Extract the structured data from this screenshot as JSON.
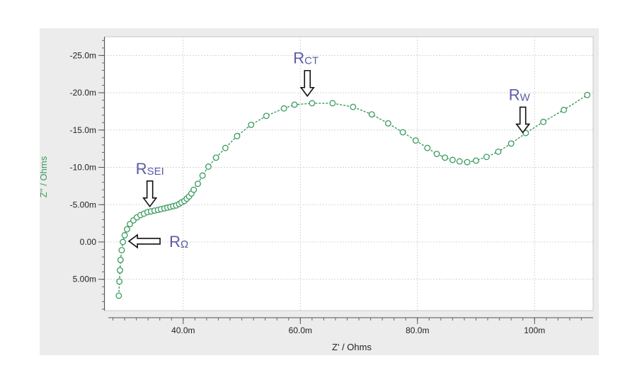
{
  "chart_data": {
    "type": "scatter",
    "title": "",
    "xlabel": "Z' / Ohms",
    "ylabel": "Z'' / Ohms",
    "xlim": [
      0.0266,
      0.11
    ],
    "ylim": [
      9.2,
      -27.5
    ],
    "y_inverted": true,
    "grid": true,
    "x_ticks": [
      {
        "value": 0.04,
        "label": "40.0m"
      },
      {
        "value": 0.06,
        "label": "60.0m"
      },
      {
        "value": 0.08,
        "label": "80.0m"
      },
      {
        "value": 0.1,
        "label": "100m"
      }
    ],
    "y_ticks": [
      {
        "value": -25,
        "label": "-25.0m"
      },
      {
        "value": -20,
        "label": "-20.0m"
      },
      {
        "value": -15,
        "label": "-15.0m"
      },
      {
        "value": -10,
        "label": "-10.0m"
      },
      {
        "value": -5,
        "label": "-5.00m"
      },
      {
        "value": 0,
        "label": "0.00"
      },
      {
        "value": 5,
        "label": "5.00m"
      }
    ],
    "series_color": "#3a9a5f",
    "series": [
      {
        "points": [
          [
            0.029,
            7.2
          ],
          [
            0.0291,
            5.3
          ],
          [
            0.0292,
            3.8
          ],
          [
            0.0293,
            2.4
          ],
          [
            0.0295,
            1.1
          ],
          [
            0.0297,
            0.0
          ],
          [
            0.03,
            -0.9
          ],
          [
            0.0304,
            -1.7
          ],
          [
            0.0309,
            -2.4
          ],
          [
            0.0315,
            -2.9
          ],
          [
            0.0321,
            -3.3
          ],
          [
            0.0327,
            -3.6
          ],
          [
            0.0333,
            -3.8
          ],
          [
            0.0339,
            -4.0
          ],
          [
            0.0345,
            -4.1
          ],
          [
            0.0351,
            -4.2
          ],
          [
            0.0357,
            -4.3
          ],
          [
            0.0362,
            -4.4
          ],
          [
            0.0368,
            -4.5
          ],
          [
            0.0373,
            -4.6
          ],
          [
            0.0378,
            -4.7
          ],
          [
            0.0383,
            -4.8
          ],
          [
            0.0388,
            -4.9
          ],
          [
            0.0393,
            -5.1
          ],
          [
            0.0397,
            -5.3
          ],
          [
            0.0402,
            -5.5
          ],
          [
            0.0406,
            -5.8
          ],
          [
            0.041,
            -6.1
          ],
          [
            0.0414,
            -6.5
          ],
          [
            0.0418,
            -7.0
          ],
          [
            0.0425,
            -7.8
          ],
          [
            0.0433,
            -8.9
          ],
          [
            0.0443,
            -10.1
          ],
          [
            0.0456,
            -11.3
          ],
          [
            0.0472,
            -12.6
          ],
          [
            0.0492,
            -14.2
          ],
          [
            0.0516,
            -15.7
          ],
          [
            0.0542,
            -16.9
          ],
          [
            0.0572,
            -17.9
          ],
          [
            0.059,
            -18.4
          ],
          [
            0.062,
            -18.6
          ],
          [
            0.0655,
            -18.6
          ],
          [
            0.069,
            -18.1
          ],
          [
            0.0722,
            -17.1
          ],
          [
            0.075,
            -15.9
          ],
          [
            0.0775,
            -14.7
          ],
          [
            0.0797,
            -13.6
          ],
          [
            0.0817,
            -12.6
          ],
          [
            0.0833,
            -11.8
          ],
          [
            0.0847,
            -11.3
          ],
          [
            0.086,
            -11.0
          ],
          [
            0.0872,
            -10.8
          ],
          [
            0.0885,
            -10.7
          ],
          [
            0.09,
            -10.9
          ],
          [
            0.0918,
            -11.4
          ],
          [
            0.0938,
            -12.1
          ],
          [
            0.096,
            -13.2
          ],
          [
            0.0985,
            -14.6
          ],
          [
            0.1015,
            -16.1
          ],
          [
            0.105,
            -17.7
          ],
          [
            0.109,
            -19.7
          ]
        ]
      }
    ],
    "annotations": [
      {
        "main": "R",
        "sub": "SEI",
        "arrow": "down",
        "target": [
          0.0343,
          -4.0
        ]
      },
      {
        "main": "R",
        "sub": "Ω",
        "arrow": "left",
        "target": [
          0.03,
          -0.1
        ]
      },
      {
        "main": "R",
        "sub": "CT",
        "arrow": "down",
        "target": [
          0.0612,
          -18.8
        ]
      },
      {
        "main": "R",
        "sub": "W",
        "arrow": "down",
        "target": [
          0.098,
          -13.9
        ]
      }
    ]
  }
}
